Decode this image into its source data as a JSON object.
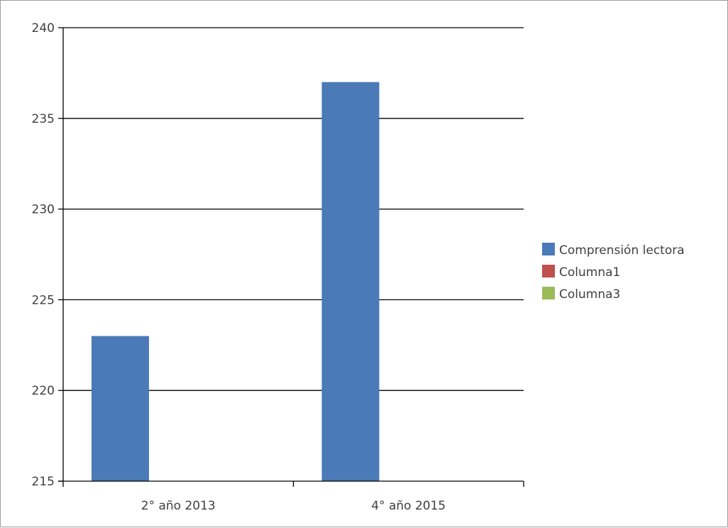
{
  "chart_data": {
    "type": "bar",
    "title": "",
    "xlabel": "",
    "ylabel": "",
    "categories": [
      "2° año 2013",
      "4° año 2015"
    ],
    "series": [
      {
        "name": "Comprensión lectora",
        "values": [
          223,
          237
        ],
        "color": "#4a7ab7"
      },
      {
        "name": "Columna1",
        "values": [
          null,
          null
        ],
        "color": "#c0504d"
      },
      {
        "name": "Columna3",
        "values": [
          null,
          null
        ],
        "color": "#9bbb59"
      }
    ],
    "ylim": [
      215,
      240
    ],
    "yticks": [
      215,
      220,
      225,
      230,
      235,
      240
    ],
    "grid": true,
    "legend_position": "right"
  }
}
